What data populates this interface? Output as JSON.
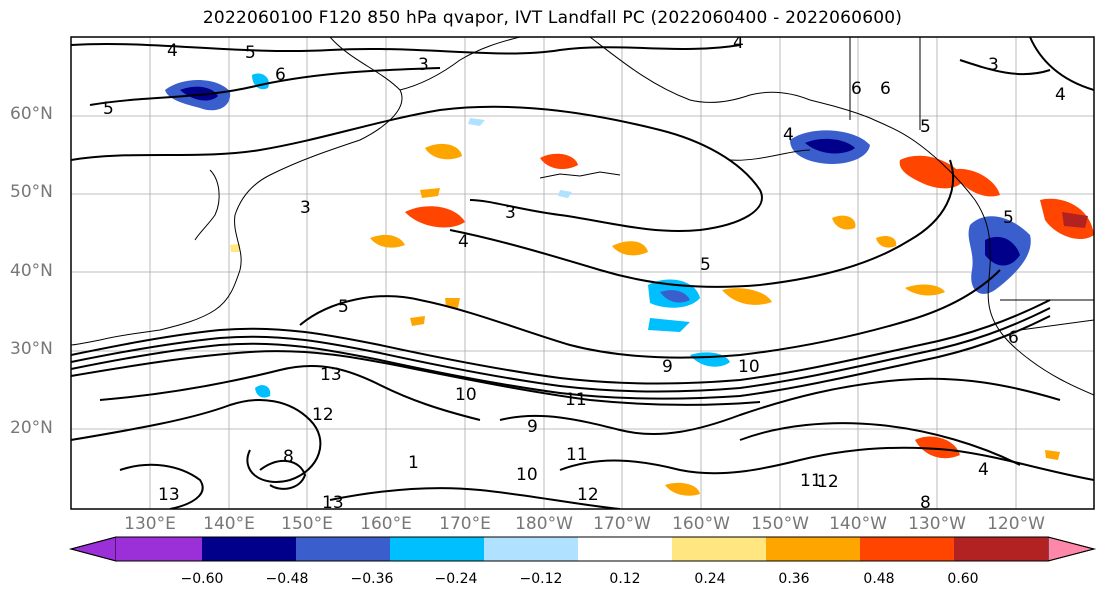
{
  "title": "2022060100 F120 850 hPa qvapor, IVT Landfall PC (2022060400 - 2022060600)",
  "lat_labels": [
    "60°N",
    "50°N",
    "40°N",
    "30°N",
    "20°N"
  ],
  "lon_labels": [
    "130°E",
    "140°E",
    "150°E",
    "160°E",
    "170°E",
    "180°W",
    "170°W",
    "160°W",
    "150°W",
    "140°W",
    "130°W",
    "120°W"
  ],
  "colorbar": {
    "ticks": [
      "−0.60",
      "−0.48",
      "−0.36",
      "−0.24",
      "−0.12",
      "0.12",
      "0.24",
      "0.36",
      "0.48",
      "0.60"
    ],
    "colors": [
      "#9b30d9",
      "#00008b",
      "#3a5fcd",
      "#00bfff",
      "#b0e2ff",
      "#ffffff",
      "#ffe680",
      "#ffa500",
      "#ff4500",
      "#b22222",
      "#ff88aa"
    ]
  },
  "contour_labels": [
    "4",
    "5",
    "3",
    "6",
    "5",
    "4",
    "3",
    "3",
    "4",
    "5",
    "4",
    "5",
    "6",
    "6",
    "4",
    "3",
    "5",
    "13",
    "12",
    "13",
    "9",
    "10",
    "11",
    "12",
    "11",
    "12",
    "10",
    "9",
    "8",
    "8",
    "13",
    "1",
    "11",
    "10",
    "6",
    "5",
    "4"
  ]
}
